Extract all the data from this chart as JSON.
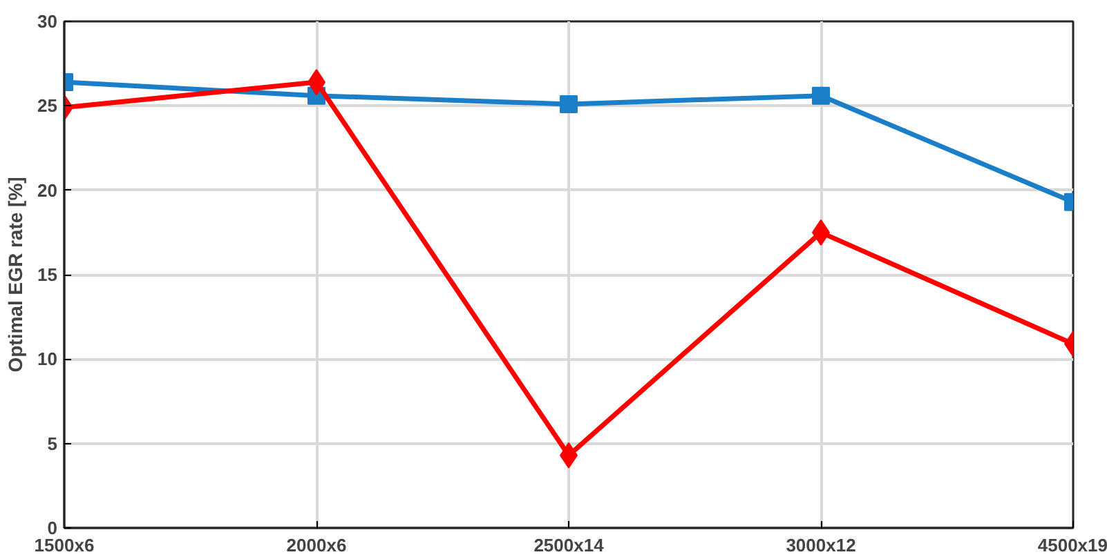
{
  "chart_data": {
    "type": "line",
    "ylabel": "Optimal EGR rate [%]",
    "categories": [
      "1500x6",
      "2000x6",
      "2500x14",
      "3000x12",
      "4500x19"
    ],
    "series": [
      {
        "color": "#1a7fc8",
        "marker": "square",
        "values": [
          26.4,
          25.6,
          25.1,
          25.6,
          19.3
        ]
      },
      {
        "color": "#ff0000",
        "marker": "diamond",
        "values": [
          24.9,
          26.4,
          4.3,
          17.5,
          10.9
        ]
      }
    ],
    "ylim": [
      0,
      30
    ],
    "yticks": [
      0,
      5,
      10,
      15,
      20,
      25,
      30
    ],
    "grid": true,
    "line_style": "solid"
  }
}
